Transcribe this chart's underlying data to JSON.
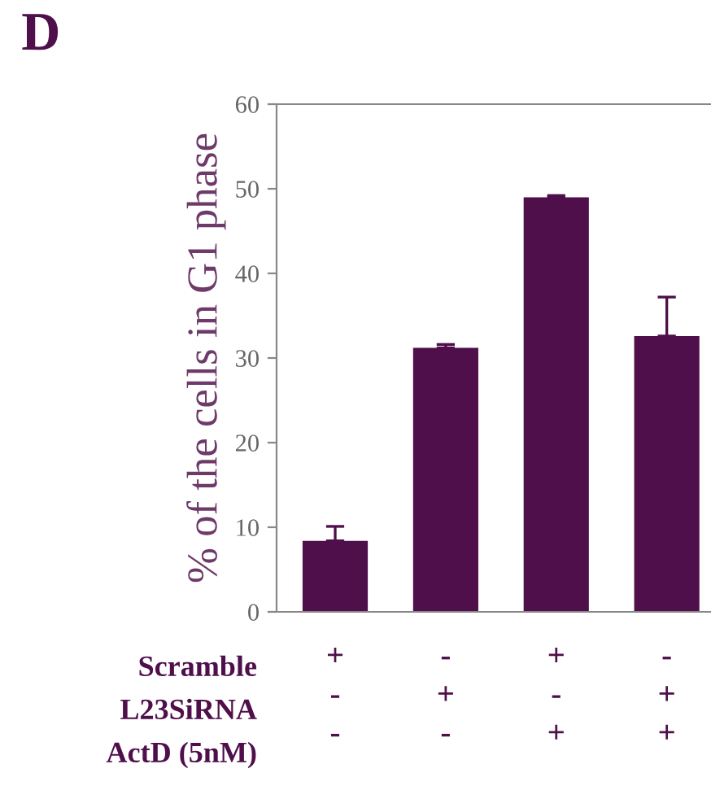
{
  "chart_data": {
    "type": "bar",
    "title": "D",
    "ylabel": "% of the cells in G1 phase",
    "categories": [
      "+\n-\n-",
      "-\n+\n-",
      "+\n-\n+",
      "-\n+\n+"
    ],
    "values": [
      8.4,
      31.2,
      49.0,
      32.6
    ],
    "errors": [
      [
        8.4,
        10.1
      ],
      [
        31.2,
        31.6
      ],
      [
        49.0,
        49.2
      ],
      [
        32.6,
        37.2
      ]
    ],
    "color": "#4f0f4a",
    "ylim": [
      0,
      60
    ],
    "yticks": [
      0,
      10,
      20,
      30,
      40,
      50,
      60
    ],
    "grid": false,
    "annotations": [
      "Scramble",
      "L23SiRNA",
      "ActD (5nM)"
    ]
  }
}
